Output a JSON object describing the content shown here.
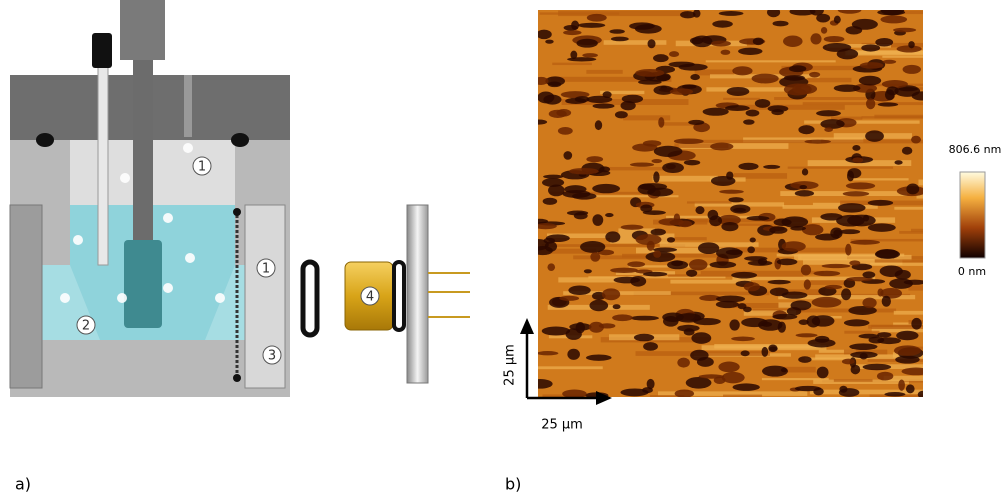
{
  "panel_a": {
    "label": "a)",
    "markers": [
      "1",
      "2",
      "3",
      "1",
      "4"
    ]
  },
  "panel_b": {
    "label": "b)",
    "colorbar_max": "806.6 nm",
    "colorbar_min": "0 nm",
    "scale_x": "25 µm",
    "scale_y": "25 µm"
  }
}
